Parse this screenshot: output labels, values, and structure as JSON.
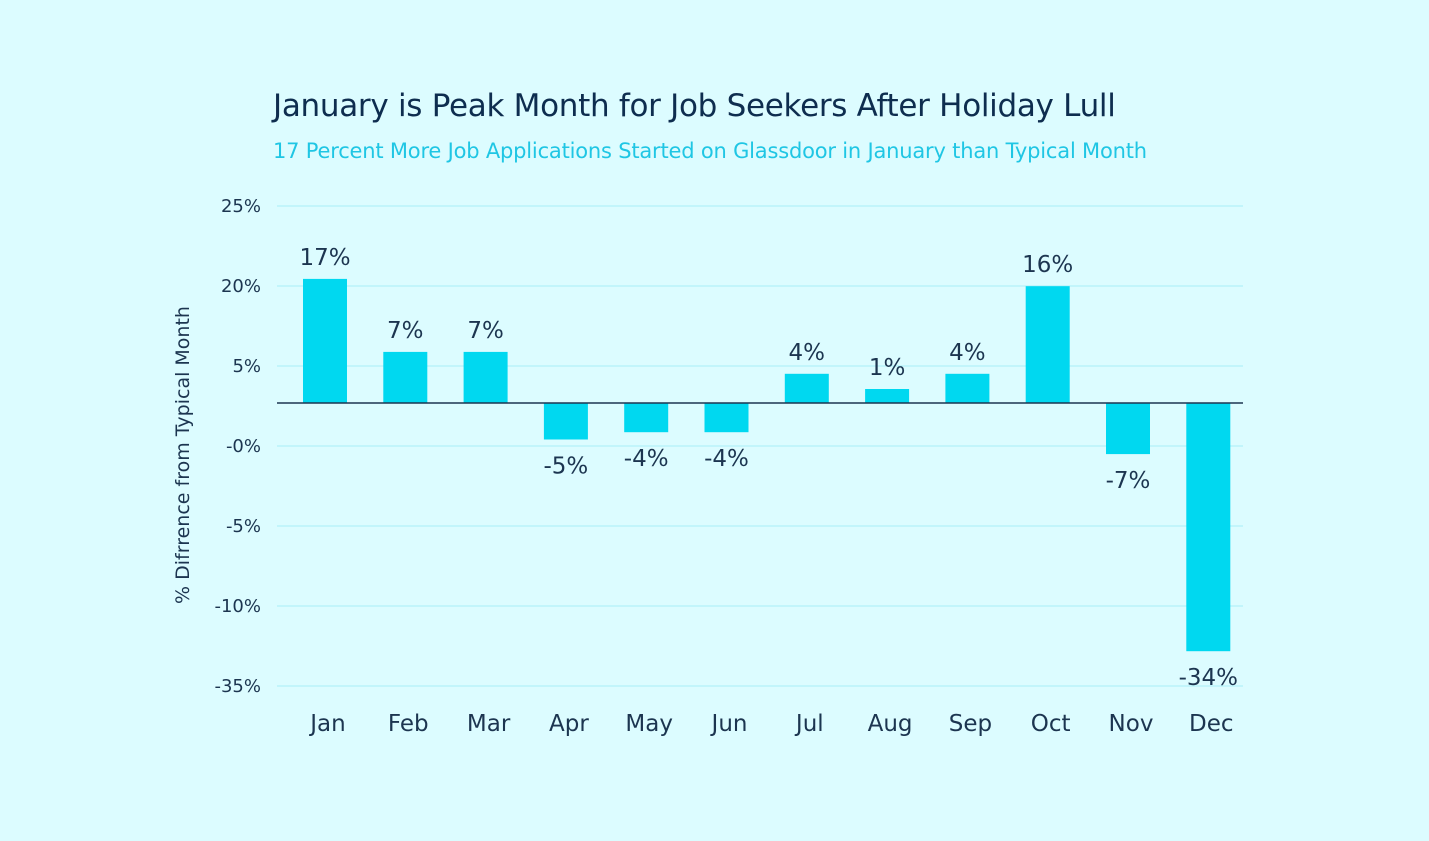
{
  "chart_data": {
    "type": "bar",
    "title": "January is Peak Month for Job Seekers After Holiday Lull",
    "subtitle": "17 Percent More Job Applications Started on Glassdoor in January than Typical Month",
    "ylabel": "% Difrrence from Typical Month",
    "xlabel": "",
    "categories": [
      "Jan",
      "Feb",
      "Mar",
      "Apr",
      "May",
      "Jun",
      "Jul",
      "Aug",
      "Sep",
      "Oct",
      "Nov",
      "Dec"
    ],
    "values": [
      17,
      7,
      7,
      -5,
      -4,
      -4,
      4,
      1,
      4,
      16,
      -7,
      -34
    ],
    "data_labels": [
      "17%",
      "7%",
      "7%",
      "-5%",
      "-4%",
      "-4%",
      "4%",
      "1%",
      "4%",
      "16%",
      "-7%",
      "-34%"
    ],
    "y_tick_labels": [
      "25%",
      "20%",
      "5%",
      "-0%",
      "-5%",
      "-10%",
      "-35%"
    ],
    "grid": true,
    "legend": "none",
    "colors": {
      "bar": "#00d8f0",
      "background": "#dcfcff",
      "title": "#0e2d4f",
      "subtitle": "#1fc6e4",
      "grid": "#a8eef7",
      "baseline": "#1c3550"
    }
  }
}
